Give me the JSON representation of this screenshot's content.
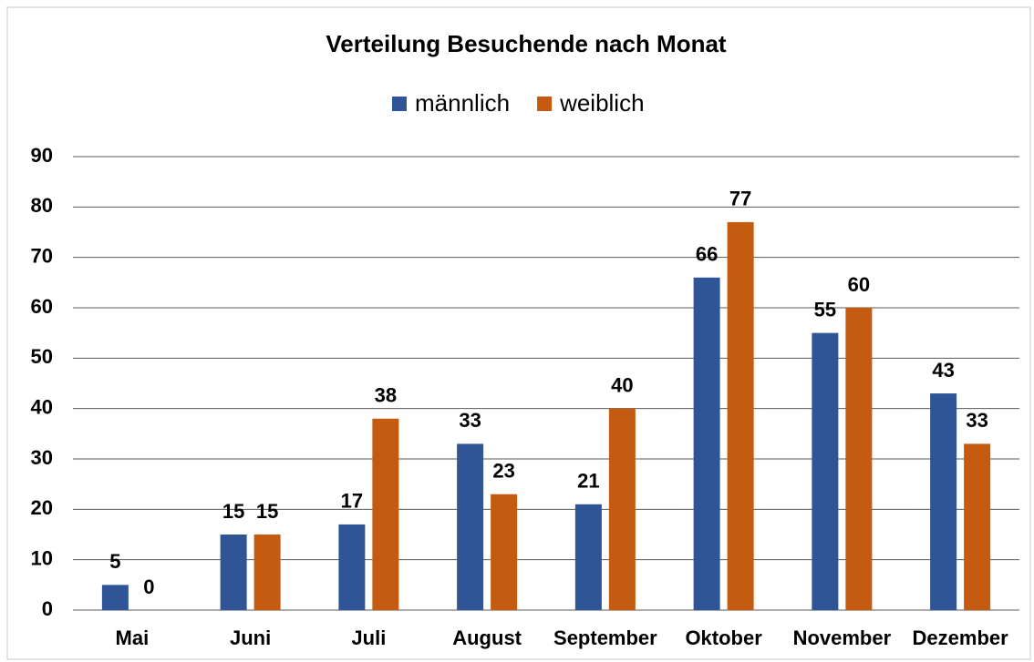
{
  "chart_data": {
    "type": "bar",
    "title": "Verteilung Besuchende nach Monat",
    "categories": [
      "Mai",
      "Juni",
      "Juli",
      "August",
      "September",
      "Oktober",
      "November",
      "Dezember"
    ],
    "series": [
      {
        "name": "männlich",
        "color": "#2f5597",
        "values": [
          5,
          15,
          17,
          33,
          21,
          66,
          55,
          43
        ]
      },
      {
        "name": "weiblich",
        "color": "#c55a11",
        "values": [
          0,
          15,
          38,
          23,
          40,
          77,
          60,
          33
        ]
      }
    ],
    "ylim": [
      0,
      90
    ],
    "yticks": [
      0,
      10,
      20,
      30,
      40,
      50,
      60,
      70,
      80,
      90
    ],
    "grid": true,
    "legend": "top"
  }
}
